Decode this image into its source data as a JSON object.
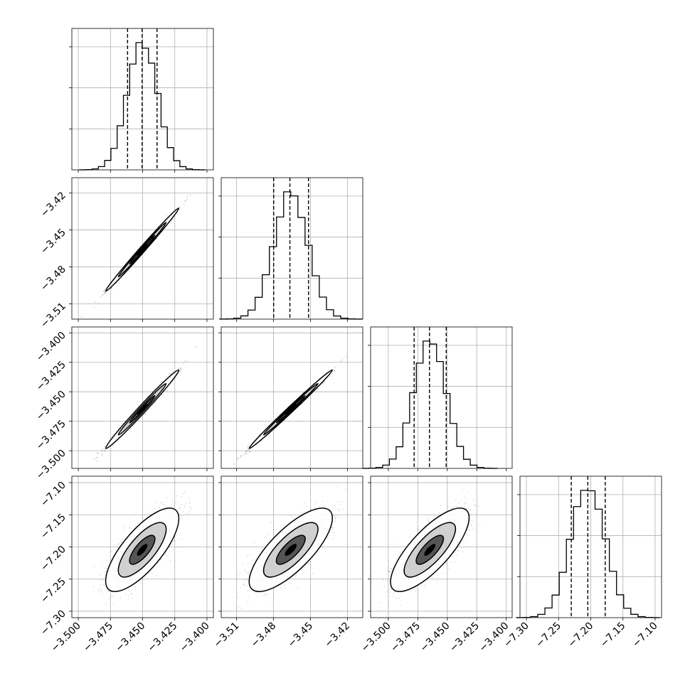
{
  "chart_data": {
    "type": "corner",
    "grid": true,
    "params": [
      {
        "ticks": [
          -3.5,
          -3.475,
          -3.45,
          -3.425,
          -3.4
        ],
        "tick_labels": [
          "−3.500",
          "−3.475",
          "−3.450",
          "−3.425",
          "−3.400"
        ],
        "range": [
          -3.505,
          -3.395
        ],
        "quantiles": [
          -3.4617,
          -3.4504,
          -3.4388
        ],
        "mean": -3.4503,
        "sd": 0.0116
      },
      {
        "ticks": [
          -3.51,
          -3.48,
          -3.45,
          -3.42
        ],
        "tick_labels": [
          "−3.51",
          "−3.48",
          "−3.45",
          "−3.42"
        ],
        "range": [
          -3.5225,
          -3.4075
        ],
        "quantiles": [
          -3.4799,
          -3.4667,
          -3.4516
        ],
        "mean": -3.466,
        "sd": 0.0138
      },
      {
        "ticks": [
          -3.5,
          -3.475,
          -3.45,
          -3.425,
          -3.4
        ],
        "tick_labels": [
          "−3.500",
          "−3.475",
          "−3.450",
          "−3.425",
          "−3.400"
        ],
        "range": [
          -3.515,
          -3.395
        ],
        "quantiles": [
          -3.4781,
          -3.4651,
          -3.4509
        ],
        "mean": -3.4648,
        "sd": 0.0136
      },
      {
        "ticks": [
          -7.3,
          -7.25,
          -7.2,
          -7.15,
          -7.1
        ],
        "tick_labels": [
          "−7.30",
          "−7.25",
          "−7.20",
          "−7.15",
          "−7.10"
        ],
        "range": [
          -7.31,
          -7.09
        ],
        "quantiles": [
          -7.2303,
          -7.2046,
          -7.1775
        ],
        "mean": -7.2045,
        "sd": 0.0265
      }
    ],
    "correlations": [
      [
        1.0,
        0.995,
        0.99,
        0.75
      ],
      [
        0.995,
        1.0,
        0.995,
        0.76
      ],
      [
        0.99,
        0.995,
        1.0,
        0.77
      ],
      [
        0.75,
        0.76,
        0.77,
        1.0
      ]
    ]
  }
}
